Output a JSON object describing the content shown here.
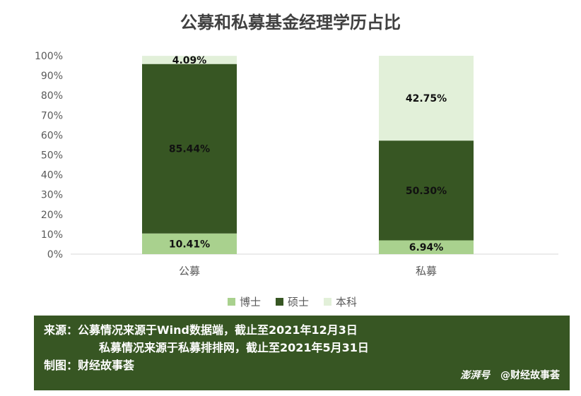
{
  "chart_data": {
    "type": "bar",
    "stacked": true,
    "title": "公募和私募基金经理学历占比",
    "categories": [
      "公募",
      "私募"
    ],
    "ylim": [
      0,
      100
    ],
    "yticks": [
      "0%",
      "10%",
      "20%",
      "30%",
      "40%",
      "50%",
      "60%",
      "70%",
      "80%",
      "90%",
      "100%"
    ],
    "series": [
      {
        "name": "博士",
        "values": [
          10.41,
          6.94
        ],
        "labels": [
          "10.41%",
          "6.94%"
        ],
        "color": "#a9d18e"
      },
      {
        "name": "硕士",
        "values": [
          85.44,
          50.3
        ],
        "labels": [
          "85.44%",
          "50.30%"
        ],
        "color": "#375623"
      },
      {
        "name": "本科",
        "values": [
          4.09,
          42.75
        ],
        "labels": [
          "4.09%",
          "42.75%"
        ],
        "color": "#e2f0d9"
      }
    ],
    "legend": "bottom",
    "grid": false
  },
  "source": {
    "line1": "来源：公募情况来源于Wind数据端，截止至2021年12月3日",
    "line2": "私募情况来源于私募排排网，截止至2021年5月31日",
    "line3": "制图：财经故事荟"
  },
  "watermark": {
    "brand": "澎湃号",
    "author": "@财经故事荟"
  }
}
